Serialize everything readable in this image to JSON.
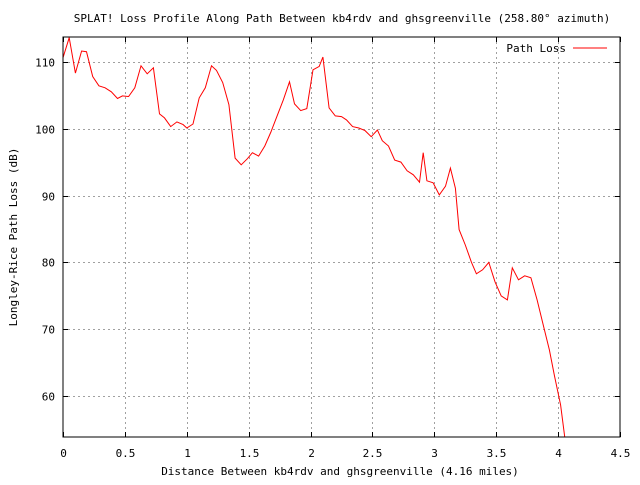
{
  "chart_data": {
    "type": "line",
    "title": "SPLAT! Loss Profile Along Path Between kb4rdv and ghsgreenville (258.80° azimuth)",
    "xlabel": "Distance Between kb4rdv and ghsgreenville (4.16 miles)",
    "ylabel": "Longley-Rice Path Loss (dB)",
    "xlim": [
      0,
      4.5
    ],
    "ylim": [
      53.9,
      113.7
    ],
    "xticks": [
      0,
      0.5,
      1,
      1.5,
      2,
      2.5,
      3,
      3.5,
      4,
      4.5
    ],
    "xtick_labels": [
      "0",
      "0.5",
      "1",
      "1.5",
      "2",
      "2.5",
      "3",
      "3.5",
      "4",
      "4.5"
    ],
    "yticks": [
      60,
      70,
      80,
      90,
      100,
      110
    ],
    "ytick_labels": [
      "60",
      "70",
      "80",
      "90",
      "100",
      "110"
    ],
    "grid": true,
    "legend_position": "top-right",
    "series": [
      {
        "name": "Path Loss",
        "color": "#ff0000",
        "x": [
          0,
          0.05,
          0.1,
          0.15,
          0.19,
          0.24,
          0.29,
          0.34,
          0.39,
          0.44,
          0.48,
          0.53,
          0.58,
          0.63,
          0.68,
          0.73,
          0.78,
          0.82,
          0.87,
          0.92,
          0.97,
          1.0,
          1.05,
          1.1,
          1.15,
          1.2,
          1.24,
          1.29,
          1.34,
          1.39,
          1.44,
          1.49,
          1.53,
          1.58,
          1.63,
          1.68,
          1.73,
          1.78,
          1.83,
          1.87,
          1.92,
          1.97,
          2.02,
          2.07,
          2.1,
          2.15,
          2.2,
          2.25,
          2.29,
          2.34,
          2.39,
          2.44,
          2.49,
          2.54,
          2.58,
          2.63,
          2.68,
          2.73,
          2.78,
          2.83,
          2.88,
          2.91,
          2.94,
          2.99,
          3.04,
          3.09,
          3.13,
          3.17,
          3.2,
          3.25,
          3.3,
          3.34,
          3.39,
          3.44,
          3.49,
          3.54,
          3.59,
          3.63,
          3.68,
          3.73,
          3.78,
          3.83,
          3.88,
          3.93,
          3.97,
          4.02,
          4.06
        ],
        "y": [
          110.6,
          113.6,
          108.3,
          111.6,
          111.5,
          107.8,
          106.4,
          106.1,
          105.5,
          104.5,
          104.9,
          104.8,
          106.1,
          109.4,
          108.2,
          109.1,
          102.2,
          101.6,
          100.3,
          101.0,
          100.6,
          100.1,
          100.7,
          104.6,
          106.1,
          109.4,
          108.7,
          106.9,
          103.6,
          95.6,
          94.6,
          95.5,
          96.4,
          95.9,
          97.4,
          99.5,
          101.9,
          104.3,
          107.0,
          103.7,
          102.7,
          103.0,
          108.8,
          109.3,
          110.7,
          103.1,
          101.9,
          101.8,
          101.3,
          100.3,
          100.1,
          99.7,
          98.8,
          99.8,
          98.2,
          97.4,
          95.3,
          95.0,
          93.7,
          93.1,
          92.0,
          96.4,
          92.2,
          91.9,
          90.1,
          91.4,
          94.1,
          91.1,
          84.9,
          82.6,
          80.0,
          78.3,
          78.9,
          80.0,
          77.1,
          75.0,
          74.4,
          79.2,
          77.4,
          78.0,
          77.7,
          74.4,
          70.6,
          66.9,
          63.1,
          58.7,
          53.0
        ]
      }
    ]
  }
}
